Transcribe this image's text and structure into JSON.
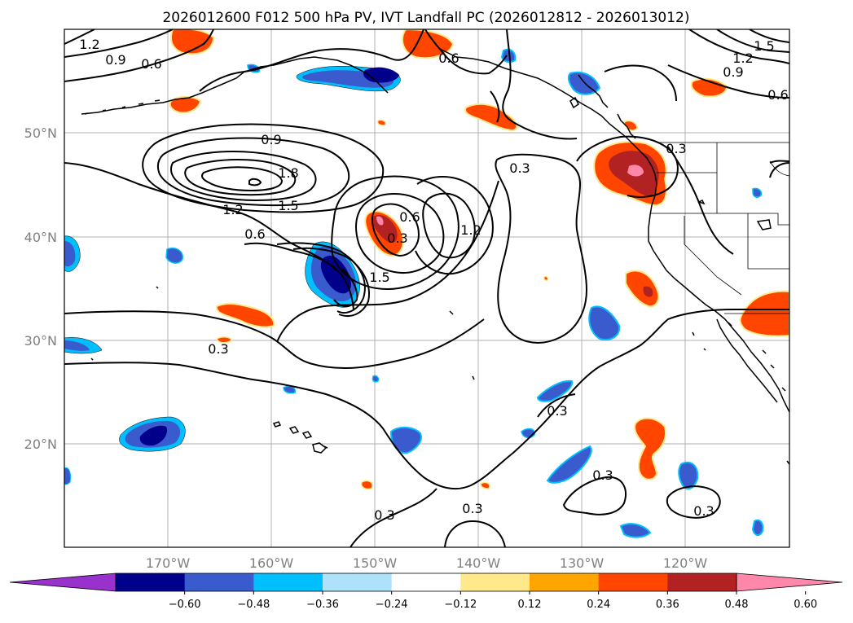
{
  "title": "2026012600 F012 500 hPa PV, IVT Landfall PC (2026012812 - 2026013012)",
  "map": {
    "projection": "cylindrical",
    "lon_range": [
      -180,
      -110
    ],
    "lat_range": [
      10,
      60
    ],
    "gridlines": true,
    "lat_labels": [
      "50°N",
      "40°N",
      "30°N",
      "20°N"
    ],
    "lon_labels": [
      "170°W",
      "160°W",
      "150°W",
      "140°W",
      "130°W",
      "120°W"
    ],
    "coastlines": true,
    "state_borders": true
  },
  "contours": {
    "field": "500 hPa PV",
    "line_color": "#000000",
    "labels": [
      "1.2",
      "0.9",
      "0.6",
      "0.6",
      "1.5",
      "1.2",
      "0.9",
      "0.6",
      "0.9",
      "1.8",
      "1.5",
      "1.2",
      "0.6",
      "0.3",
      "0.3",
      "0.6",
      "0.3",
      "1.5",
      "1.2",
      "0.3",
      "0.3",
      "0.3",
      "0.3",
      "0.3",
      "0.3"
    ]
  },
  "shading": {
    "field": "IVT Landfall PC",
    "levels": [
      -0.6,
      -0.48,
      -0.36,
      -0.24,
      -0.12,
      0.12,
      0.24,
      0.36,
      0.48,
      0.6
    ],
    "colors": {
      "lt_-0.60": "#9932CC",
      "-0.60_-0.48": "#00008B",
      "-0.48_-0.36": "#3A5BCD",
      "-0.36_-0.24": "#00BFFF",
      "-0.24_-0.12": "#ADE2FA",
      "-0.12_0.12": "#FFFFFF",
      "0.12_0.24": "#FFE98A",
      "0.24_0.36": "#FFA500",
      "0.36_0.48": "#FF4500",
      "0.48_0.60": "#B22222",
      "gt_0.60": "#FF88AA"
    }
  },
  "colorbar": {
    "orientation": "horizontal",
    "extend": "both",
    "tick_labels": [
      "−0.60",
      "−0.48",
      "−0.36",
      "−0.24",
      "−0.12",
      "0.12",
      "0.24",
      "0.36",
      "0.48",
      "0.60"
    ],
    "segment_colors": [
      "#9932CC",
      "#00008B",
      "#3A5BCD",
      "#00BFFF",
      "#ADE2FA",
      "#FFFFFF",
      "#FFE98A",
      "#FFA500",
      "#FF4500",
      "#B22222",
      "#FF88AA"
    ]
  }
}
